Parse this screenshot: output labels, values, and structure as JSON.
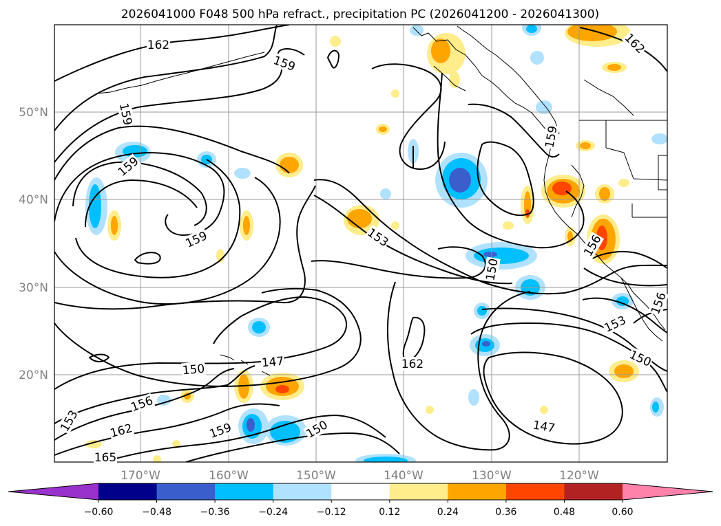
{
  "title": "2026041000 F048 500 hPa refract., precipitation PC (2026041200 - 2026041300)",
  "lat_labels": [
    "50°N",
    "40°N",
    "30°N",
    "20°N"
  ],
  "lon_labels": [
    "170°W",
    "160°W",
    "150°W",
    "140°W",
    "130°W",
    "120°W"
  ],
  "colorbar": {
    "ticks": [
      "−0.60",
      "−0.48",
      "−0.36",
      "−0.24",
      "−0.12",
      "0.12",
      "0.24",
      "0.36",
      "0.48",
      "0.60"
    ],
    "colors": [
      "#9932CC",
      "#00008B",
      "#3A5FCD",
      "#00BFFF",
      "#B0E2FF",
      "#FFFFFF",
      "#FFEC8B",
      "#FFA500",
      "#FF4500",
      "#B22222",
      "#FF82AB"
    ]
  },
  "contour_labels": [
    {
      "text": "162"
    },
    {
      "text": "159"
    },
    {
      "text": "159"
    },
    {
      "text": "159"
    },
    {
      "text": "159"
    },
    {
      "text": "153"
    },
    {
      "text": "150"
    },
    {
      "text": "162"
    },
    {
      "text": "147"
    },
    {
      "text": "150"
    },
    {
      "text": "156"
    },
    {
      "text": "162"
    },
    {
      "text": "153"
    },
    {
      "text": "165"
    },
    {
      "text": "159"
    },
    {
      "text": "150"
    },
    {
      "text": "147"
    },
    {
      "text": "153"
    },
    {
      "text": "150"
    },
    {
      "text": "156"
    },
    {
      "text": "159"
    },
    {
      "text": "162"
    },
    {
      "text": "156"
    }
  ]
}
